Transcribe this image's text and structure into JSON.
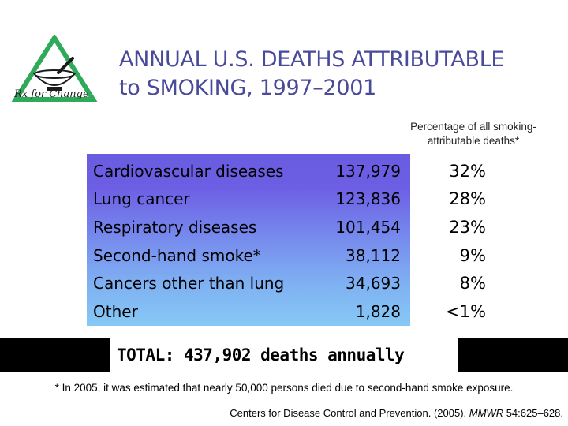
{
  "logo": {
    "text": "Rx for Change",
    "icon": "mortar-pestle-triangle-icon",
    "color": "#2eaa5a"
  },
  "title": {
    "line1": "ANNUAL U.S. DEATHS ATTRIBUTABLE",
    "line2": "to SMOKING, 1997–2001"
  },
  "percentage_caption": {
    "line1": "Percentage of all smoking-",
    "line2": "attributable deaths*"
  },
  "rows": [
    {
      "cause": "Cardiovascular diseases",
      "deaths": "137,979",
      "percent": "32%"
    },
    {
      "cause": "Lung cancer",
      "deaths": "123,836",
      "percent": "28%"
    },
    {
      "cause": "Respiratory diseases",
      "deaths": "101,454",
      "percent": "23%"
    },
    {
      "cause": "Second-hand smoke*",
      "deaths": "38,112",
      "percent": "9%"
    },
    {
      "cause": "Cancers other than lung",
      "deaths": "34,693",
      "percent": "8%"
    },
    {
      "cause": "Other",
      "deaths": "1,828",
      "percent": "<1%"
    }
  ],
  "total": "TOTAL: 437,902 deaths annually",
  "footnote": "* In 2005, it was estimated that nearly 50,000 persons died due to second-hand smoke exposure.",
  "citation": {
    "prefix": "Centers for Disease Control and Prevention. (2005). ",
    "journal": "MMWR",
    "suffix": " 54:625–628."
  },
  "colors": {
    "title": "#4a4a9a",
    "table_gradient_top": "#6a5ce0",
    "table_gradient_bottom": "#86c8f5",
    "total_bar": "#000000"
  }
}
